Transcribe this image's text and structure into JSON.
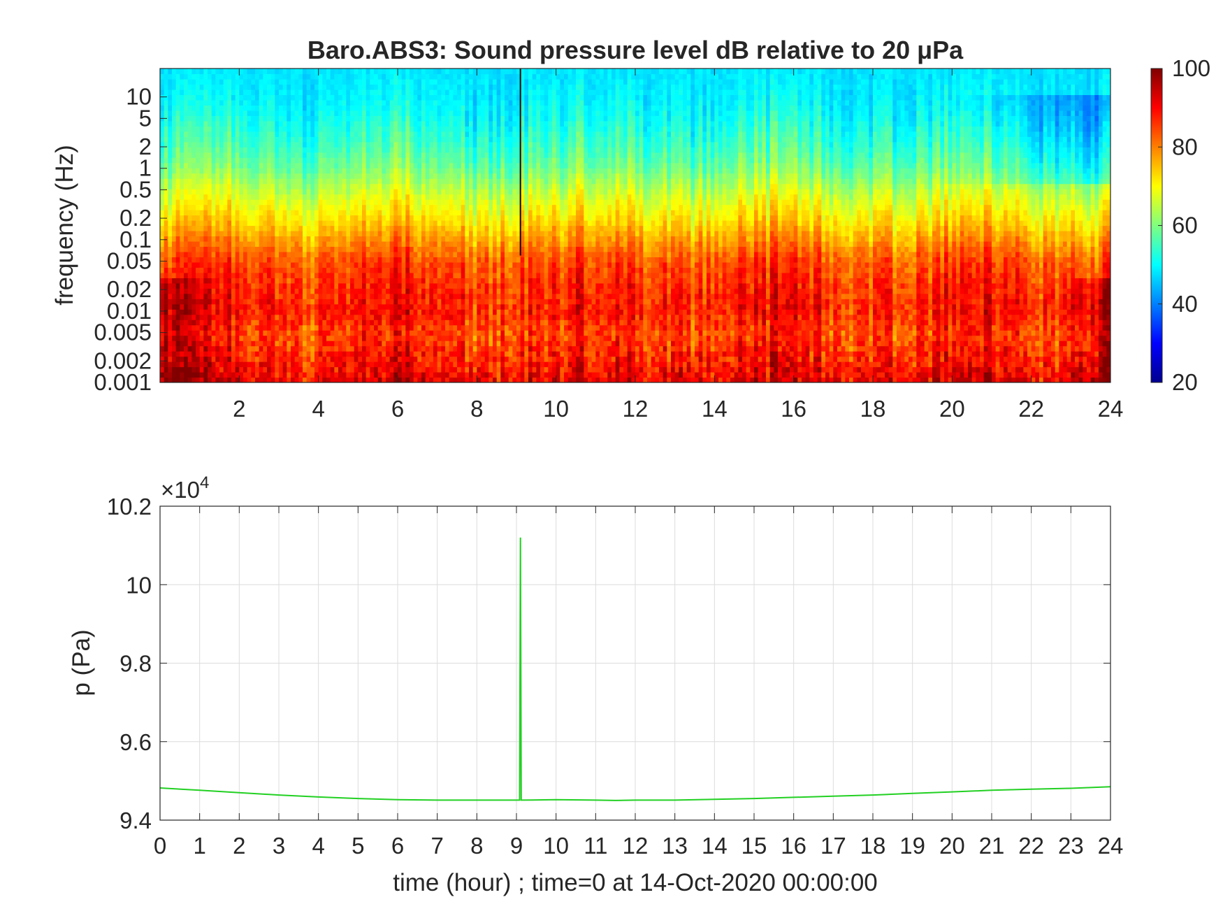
{
  "chart_data": [
    {
      "type": "heatmap",
      "title": "Baro.ABS3: Sound pressure level dB relative to 20 μPa",
      "xlabel": "",
      "ylabel": "frequency (Hz)",
      "xlim": [
        0,
        24
      ],
      "x_scale": "linear",
      "x_ticks": [
        "2",
        "4",
        "6",
        "8",
        "10",
        "12",
        "14",
        "16",
        "18",
        "20",
        "22",
        "24"
      ],
      "ylim": [
        0.001,
        25
      ],
      "y_scale": "log",
      "y_ticks": [
        "0.001",
        "0.002",
        "0.005",
        "0.01",
        "0.02",
        "0.05",
        "0.1",
        "0.2",
        "0.5",
        "1",
        "2",
        "5",
        "10"
      ],
      "colorbar": {
        "label": "",
        "range": [
          20,
          100
        ],
        "ticks": [
          "20",
          "40",
          "60",
          "80",
          "100"
        ],
        "colormap": "jet"
      },
      "grid": false,
      "event_hour": 9.1,
      "spl_profile_by_frequency": [
        {
          "frequency": 0.001,
          "spl": 92
        },
        {
          "frequency": 0.002,
          "spl": 88
        },
        {
          "frequency": 0.005,
          "spl": 85
        },
        {
          "frequency": 0.01,
          "spl": 88
        },
        {
          "frequency": 0.02,
          "spl": 87
        },
        {
          "frequency": 0.05,
          "spl": 84
        },
        {
          "frequency": 0.1,
          "spl": 78
        },
        {
          "frequency": 0.2,
          "spl": 72
        },
        {
          "frequency": 0.5,
          "spl": 65
        },
        {
          "frequency": 1,
          "spl": 59
        },
        {
          "frequency": 2,
          "spl": 55
        },
        {
          "frequency": 5,
          "spl": 51
        },
        {
          "frequency": 10,
          "spl": 49
        },
        {
          "frequency": 25,
          "spl": 48
        }
      ]
    },
    {
      "type": "line",
      "title": "",
      "xlabel": "time (hour) ; time=0 at 14-Oct-2020 00:00:00",
      "ylabel": "p (Pa)",
      "xlim": [
        0,
        24
      ],
      "ylim": [
        94000,
        102000
      ],
      "y_exponent_label": "×10",
      "y_exponent": "4",
      "x_ticks": [
        "0",
        "1",
        "2",
        "3",
        "4",
        "5",
        "6",
        "7",
        "8",
        "9",
        "10",
        "11",
        "12",
        "13",
        "14",
        "15",
        "16",
        "17",
        "18",
        "19",
        "20",
        "21",
        "22",
        "23",
        "24"
      ],
      "y_ticks": [
        {
          "value": 94000,
          "label": "9.4"
        },
        {
          "value": 96000,
          "label": "9.6"
        },
        {
          "value": 98000,
          "label": "9.8"
        },
        {
          "value": 100000,
          "label": "10"
        },
        {
          "value": 102000,
          "label": "10.2"
        }
      ],
      "grid": true,
      "color": "#22d022",
      "series": [
        {
          "x": [
            0,
            1,
            2,
            3,
            4,
            5,
            6,
            7,
            8,
            9,
            9.08,
            9.1,
            9.12,
            10,
            11,
            11.5,
            12,
            13,
            14,
            15,
            16,
            17,
            18,
            19,
            20,
            21,
            22,
            23,
            24
          ],
          "values": [
            94820,
            94760,
            94700,
            94640,
            94590,
            94550,
            94520,
            94510,
            94510,
            94510,
            94510,
            101200,
            94510,
            94520,
            94510,
            94500,
            94510,
            94510,
            94530,
            94550,
            94580,
            94610,
            94640,
            94680,
            94720,
            94760,
            94790,
            94810,
            94850
          ]
        }
      ]
    }
  ]
}
